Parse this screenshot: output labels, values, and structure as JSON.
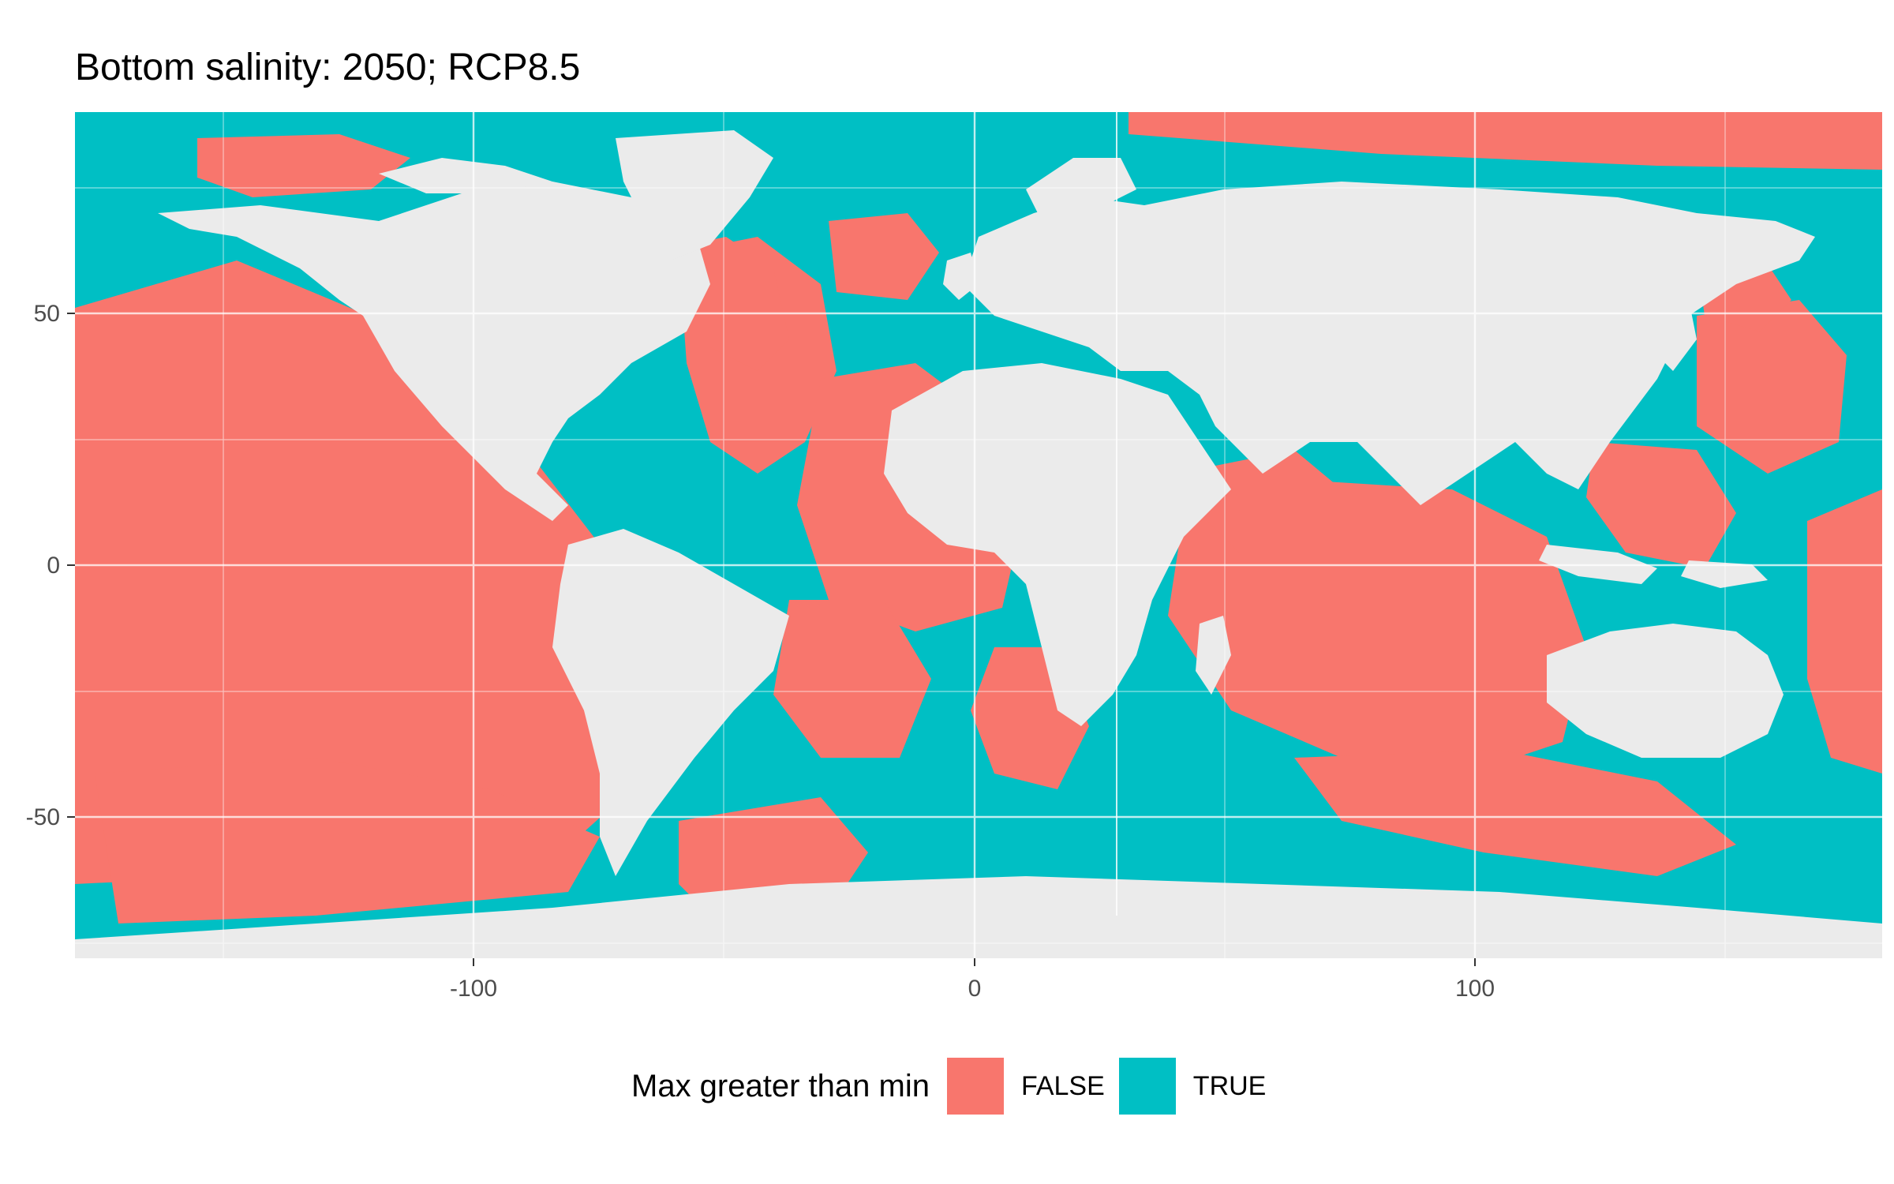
{
  "chart_data": {
    "type": "heatmap",
    "title": "Bottom salinity: 2050; RCP8.5",
    "xlabel": "",
    "ylabel": "",
    "xlim": [
      -180,
      180
    ],
    "ylim": [
      -78,
      90
    ],
    "x_ticks": [
      -100,
      0,
      100
    ],
    "y_ticks": [
      -50,
      0,
      50
    ],
    "grid": true,
    "legend": {
      "title": "Max greater than min",
      "position": "bottom",
      "entries": [
        {
          "label": "FALSE",
          "color": "#F8766D"
        },
        {
          "label": "TRUE",
          "color": "#00BFC4"
        }
      ]
    },
    "colors": {
      "panel": "#EBEBEB",
      "grid": "#FFFFFF",
      "land": "#EBEBEB"
    }
  }
}
